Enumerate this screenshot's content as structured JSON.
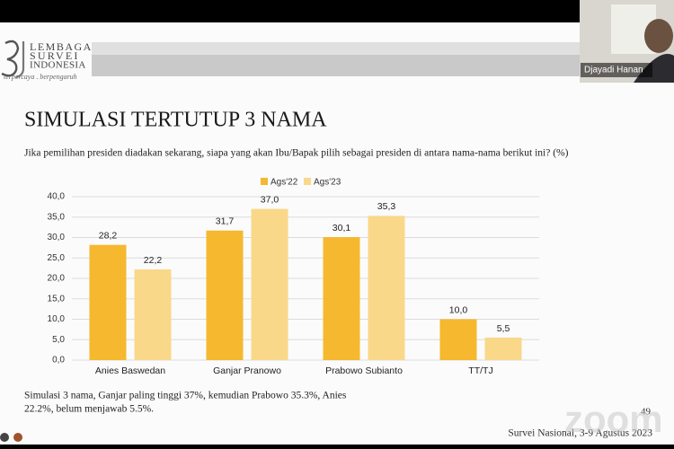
{
  "header": {
    "logo_line1": "LEMBAGA",
    "logo_line2": "SURVEI",
    "logo_line3": "INDONESIA",
    "tagline": "terpercaya . berpengaruh"
  },
  "participant": {
    "name": "Djayadi Hanan"
  },
  "chart_data": {
    "type": "bar",
    "title": "SIMULASI TERTUTUP 3 NAMA",
    "subtitle": "Jika pemilihan presiden diadakan sekarang, siapa yang akan Ibu/Bapak pilih sebagai presiden di antara nama-nama berikut ini?  (%)",
    "categories": [
      "Anies Baswedan",
      "Ganjar Pranowo",
      "Prabowo Subianto",
      "TT/TJ"
    ],
    "series": [
      {
        "name": "Ags'22",
        "color": "#f5b82e",
        "values": [
          28.2,
          31.7,
          30.1,
          10.0
        ],
        "value_labels": [
          "28,2",
          "31,7",
          "30,1",
          "10,0"
        ]
      },
      {
        "name": "Ags'23",
        "color": "#f9d88a",
        "values": [
          22.2,
          37.0,
          35.3,
          5.5
        ],
        "value_labels": [
          "22,2",
          "37,0",
          "35,3",
          "5,5"
        ]
      }
    ],
    "ylim": [
      0,
      40
    ],
    "yticks": [
      {
        "value": 0,
        "label": "0,0"
      },
      {
        "value": 5,
        "label": "5,0"
      },
      {
        "value": 10,
        "label": "10,0"
      },
      {
        "value": 15,
        "label": "15,0"
      },
      {
        "value": 20,
        "label": "20,0"
      },
      {
        "value": 25,
        "label": "25,0"
      },
      {
        "value": 30,
        "label": "30,0"
      },
      {
        "value": 35,
        "label": "35,0"
      },
      {
        "value": 40,
        "label": "40,0"
      }
    ],
    "grid": true,
    "legend": "top"
  },
  "notes": [
    "Simulasi 3 nama, Ganjar paling tinggi 37%, kemudian Prabowo 35.3%, Anies",
    "22.2%, belum menjawab 5.5%."
  ],
  "page_number": "49",
  "footer": "Survei Nasional, 3-9 Agustus 2023",
  "watermark": "zoom"
}
